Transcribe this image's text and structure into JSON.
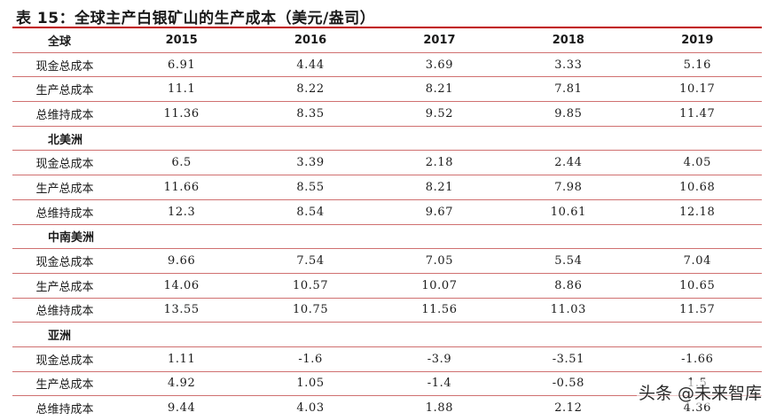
{
  "title": "表 15：全球主产白银矿山的生产成本（美元/盎司）",
  "header": {
    "first": "全球",
    "years": [
      "2015",
      "2016",
      "2017",
      "2018",
      "2019"
    ]
  },
  "metrics": [
    "现金总成本",
    "生产总成本",
    "总维持成本"
  ],
  "global": [
    [
      "6.91",
      "4.44",
      "3.69",
      "3.33",
      "5.16"
    ],
    [
      "11.1",
      "8.22",
      "8.21",
      "7.81",
      "10.17"
    ],
    [
      "11.36",
      "8.35",
      "9.52",
      "9.85",
      "11.47"
    ]
  ],
  "regions": [
    {
      "name": "北美洲",
      "rows": [
        [
          "6.5",
          "3.39",
          "2.18",
          "2.44",
          "4.05"
        ],
        [
          "11.66",
          "8.55",
          "8.21",
          "7.98",
          "10.68"
        ],
        [
          "12.3",
          "8.54",
          "9.67",
          "10.61",
          "12.18"
        ]
      ]
    },
    {
      "name": "中南美洲",
      "rows": [
        [
          "9.66",
          "7.54",
          "7.05",
          "5.54",
          "7.04"
        ],
        [
          "14.06",
          "10.57",
          "10.07",
          "8.86",
          "10.65"
        ],
        [
          "13.55",
          "10.75",
          "11.56",
          "11.03",
          "11.57"
        ]
      ]
    },
    {
      "name": "亚洲",
      "rows": [
        [
          "1.11",
          "-1.6",
          "-3.9",
          "-3.51",
          "-1.66"
        ],
        [
          "4.92",
          "1.05",
          "-1.4",
          "-0.58",
          "1.5"
        ],
        [
          "9.44",
          "4.03",
          "1.88",
          "2.12",
          "4.36"
        ]
      ]
    }
  ],
  "watermark": "头条 @未来智库",
  "colors": {
    "rule": "#c00000",
    "row_line": "#d07070"
  }
}
